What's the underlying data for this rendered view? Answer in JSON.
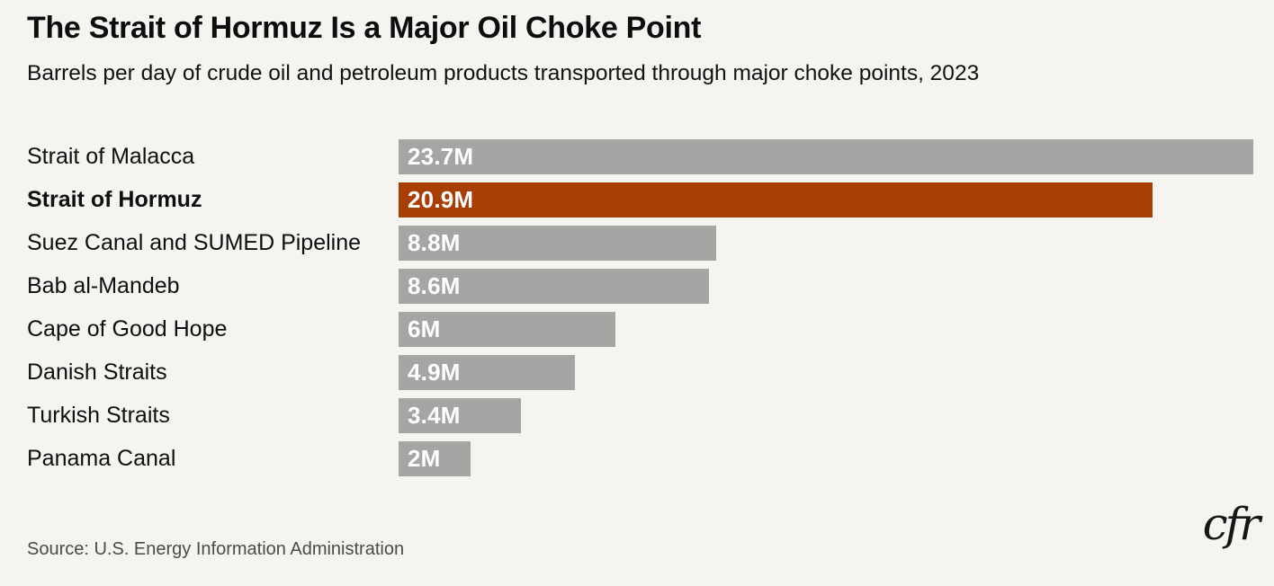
{
  "header": {
    "title": "The Strait of Hormuz Is a Major Oil Choke Point",
    "subtitle": "Barrels per day of crude oil and petroleum products transported through major choke points, 2023"
  },
  "chart_data": {
    "type": "bar",
    "orientation": "horizontal",
    "title": "The Strait of Hormuz Is a Major Oil Choke Point",
    "subtitle": "Barrels per day of crude oil and petroleum products transported through major choke points, 2023",
    "categories": [
      "Strait of Malacca",
      "Strait of Hormuz",
      "Suez Canal and SUMED Pipeline",
      "Bab al-Mandeb",
      "Cape of Good Hope",
      "Danish Straits",
      "Turkish Straits",
      "Panama Canal"
    ],
    "values": [
      23.7,
      20.9,
      8.8,
      8.6,
      6,
      4.9,
      3.4,
      2
    ],
    "value_labels": [
      "23.7M",
      "20.9M",
      "8.8M",
      "8.6M",
      "6M",
      "4.9M",
      "3.4M",
      "2M"
    ],
    "unit": "million barrels per day",
    "xlim": [
      0,
      23.7
    ],
    "grid": false,
    "legend": false,
    "highlighted_category": "Strait of Hormuz",
    "bar_color": "#a5a5a4",
    "highlight_color": "#a93e04",
    "value_label_color": "#ffffff",
    "category_label_color": "#0e0e0e",
    "background_color": "#f5f4f1"
  },
  "footer": {
    "source": "Source: U.S. Energy Information Administration",
    "logo_text": "cfr"
  }
}
